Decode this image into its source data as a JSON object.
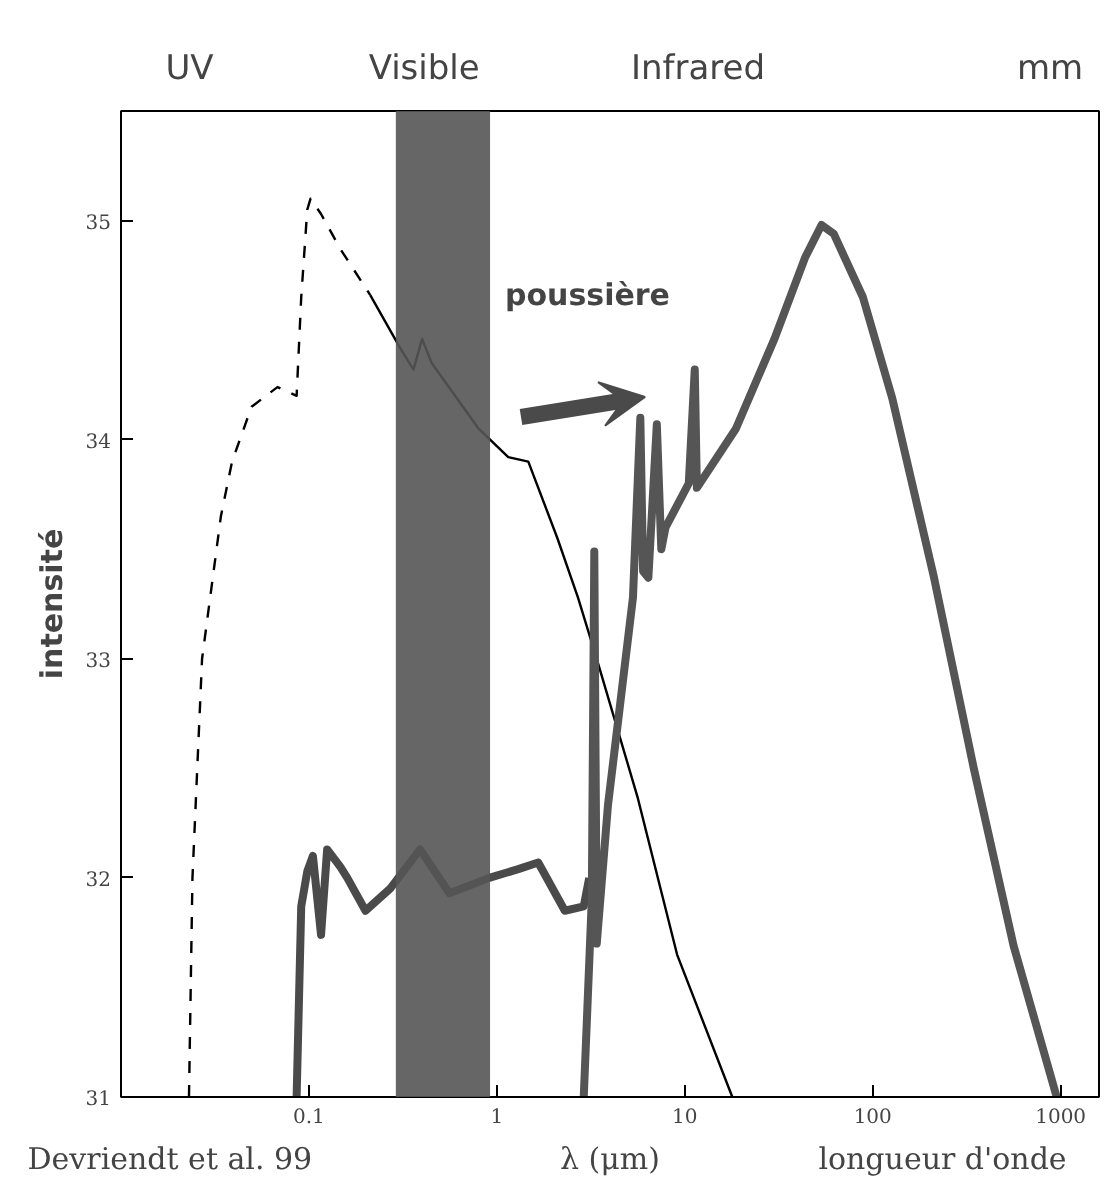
{
  "chart_data": {
    "type": "line",
    "xlabel": "λ (μm)",
    "ylabel": "intensité",
    "log": "x",
    "xlim": [
      0.01,
      1600
    ],
    "ylim": [
      31,
      35.5
    ],
    "xticks": [
      0.1,
      1,
      10,
      100,
      1000
    ],
    "yticks": [
      31,
      32,
      33,
      34,
      35
    ],
    "grid": false,
    "series": [
      {
        "color": "#000000",
        "line_style": "dashed",
        "x": [
          0.023,
          0.024,
          0.027,
          0.034,
          0.039,
          0.0495,
          0.068,
          0.086,
          0.091,
          0.098,
          0.102,
          0.116,
          0.147,
          0.212
        ],
        "values": [
          31,
          32,
          33,
          33.65,
          33.9,
          34.15,
          34.24,
          34.2,
          34.65,
          35.05,
          35.1,
          35.03,
          34.87,
          34.66
        ]
      },
      {
        "color": "#000000",
        "line_style": "solid",
        "x": [
          0.212,
          0.305,
          0.36,
          0.4,
          0.45,
          0.8,
          1.15,
          1.47,
          2.1,
          2.7,
          3.4,
          5.6,
          9.1,
          17.9
        ],
        "values": [
          34.66,
          34.42,
          34.32,
          34.46,
          34.35,
          34.05,
          33.92,
          33.9,
          33.55,
          33.28,
          33.0,
          32.37,
          31.65,
          31.0
        ]
      },
      {
        "color": "#4a4a4a",
        "line_style": "solid",
        "x": [
          0.086,
          0.091,
          0.098,
          0.105,
          0.116,
          0.125,
          0.147,
          0.16,
          0.2,
          0.27,
          0.39,
          0.56,
          0.91,
          1.3,
          1.66,
          2.3,
          2.9,
          3.1
        ],
        "values": [
          31,
          31.87,
          32.03,
          32.1,
          31.74,
          32.13,
          32.05,
          32.0,
          31.85,
          31.95,
          32.13,
          31.93,
          32.0,
          32.04,
          32.07,
          31.85,
          31.87,
          32.0
        ]
      },
      {
        "color": "#555555",
        "line_style": "solid",
        "x": [
          2.9,
          3.2,
          3.3,
          3.4,
          3.9,
          5.3,
          5.8,
          6.0,
          6.4,
          7.1,
          7.5,
          7.9,
          10.5,
          11.3,
          11.6,
          18.7,
          30,
          43.6,
          53.4,
          62,
          88.7,
          127,
          212,
          345,
          562,
          953
        ],
        "values": [
          31,
          31.9,
          33.49,
          31.7,
          32.33,
          33.28,
          34.1,
          33.4,
          33.37,
          34.07,
          33.5,
          33.6,
          33.8,
          34.32,
          33.78,
          34.05,
          34.46,
          34.83,
          34.98,
          34.94,
          34.65,
          34.19,
          33.37,
          32.5,
          31.69,
          31.0
        ]
      }
    ],
    "bands": [
      {
        "axis": "x",
        "from": 0.29,
        "to": 0.92,
        "color": "#555555"
      }
    ],
    "annotations": [
      "UV",
      "Visible",
      "Infrared",
      "mm",
      "poussière",
      "longueur d'onde",
      "Devriendt et al. 99"
    ]
  }
}
